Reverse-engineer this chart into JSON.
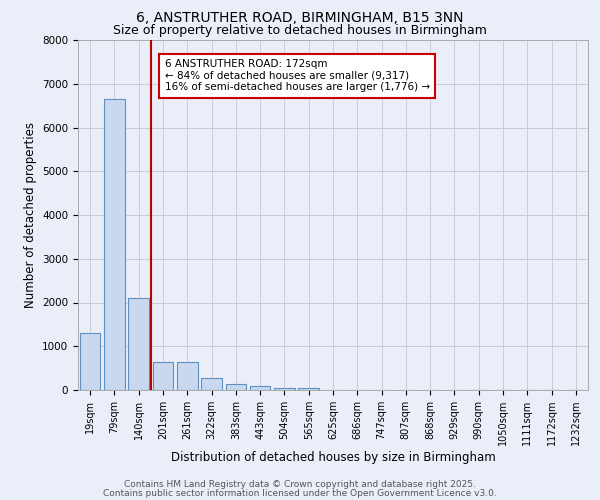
{
  "title1": "6, ANSTRUTHER ROAD, BIRMINGHAM, B15 3NN",
  "title2": "Size of property relative to detached houses in Birmingham",
  "xlabel": "Distribution of detached houses by size in Birmingham",
  "ylabel": "Number of detached properties",
  "categories": [
    "19sqm",
    "79sqm",
    "140sqm",
    "201sqm",
    "261sqm",
    "322sqm",
    "383sqm",
    "443sqm",
    "504sqm",
    "565sqm",
    "625sqm",
    "686sqm",
    "747sqm",
    "807sqm",
    "868sqm",
    "929sqm",
    "990sqm",
    "1050sqm",
    "1111sqm",
    "1172sqm",
    "1232sqm"
  ],
  "values": [
    1300,
    6650,
    2100,
    650,
    640,
    280,
    130,
    100,
    50,
    50,
    0,
    0,
    0,
    0,
    0,
    0,
    0,
    0,
    0,
    0,
    0
  ],
  "bar_color": "#c8d8ee",
  "bar_edge_color": "#6090c0",
  "grid_color": "#c8ccd8",
  "background_color": "#eaeef8",
  "red_line_x": 2.5,
  "annotation_text": "6 ANSTRUTHER ROAD: 172sqm\n← 84% of detached houses are smaller (9,317)\n16% of semi-detached houses are larger (1,776) →",
  "annotation_box_color": "#ffffff",
  "annotation_box_edge_color": "#cc0000",
  "ylim": [
    0,
    8000
  ],
  "yticks": [
    0,
    1000,
    2000,
    3000,
    4000,
    5000,
    6000,
    7000,
    8000
  ],
  "footer1": "Contains HM Land Registry data © Crown copyright and database right 2025.",
  "footer2": "Contains public sector information licensed under the Open Government Licence v3.0.",
  "title1_fontsize": 10,
  "title2_fontsize": 9,
  "xlabel_fontsize": 8.5,
  "ylabel_fontsize": 8.5,
  "tick_fontsize": 7.5,
  "annotation_fontsize": 7.5,
  "footer_fontsize": 6.5
}
